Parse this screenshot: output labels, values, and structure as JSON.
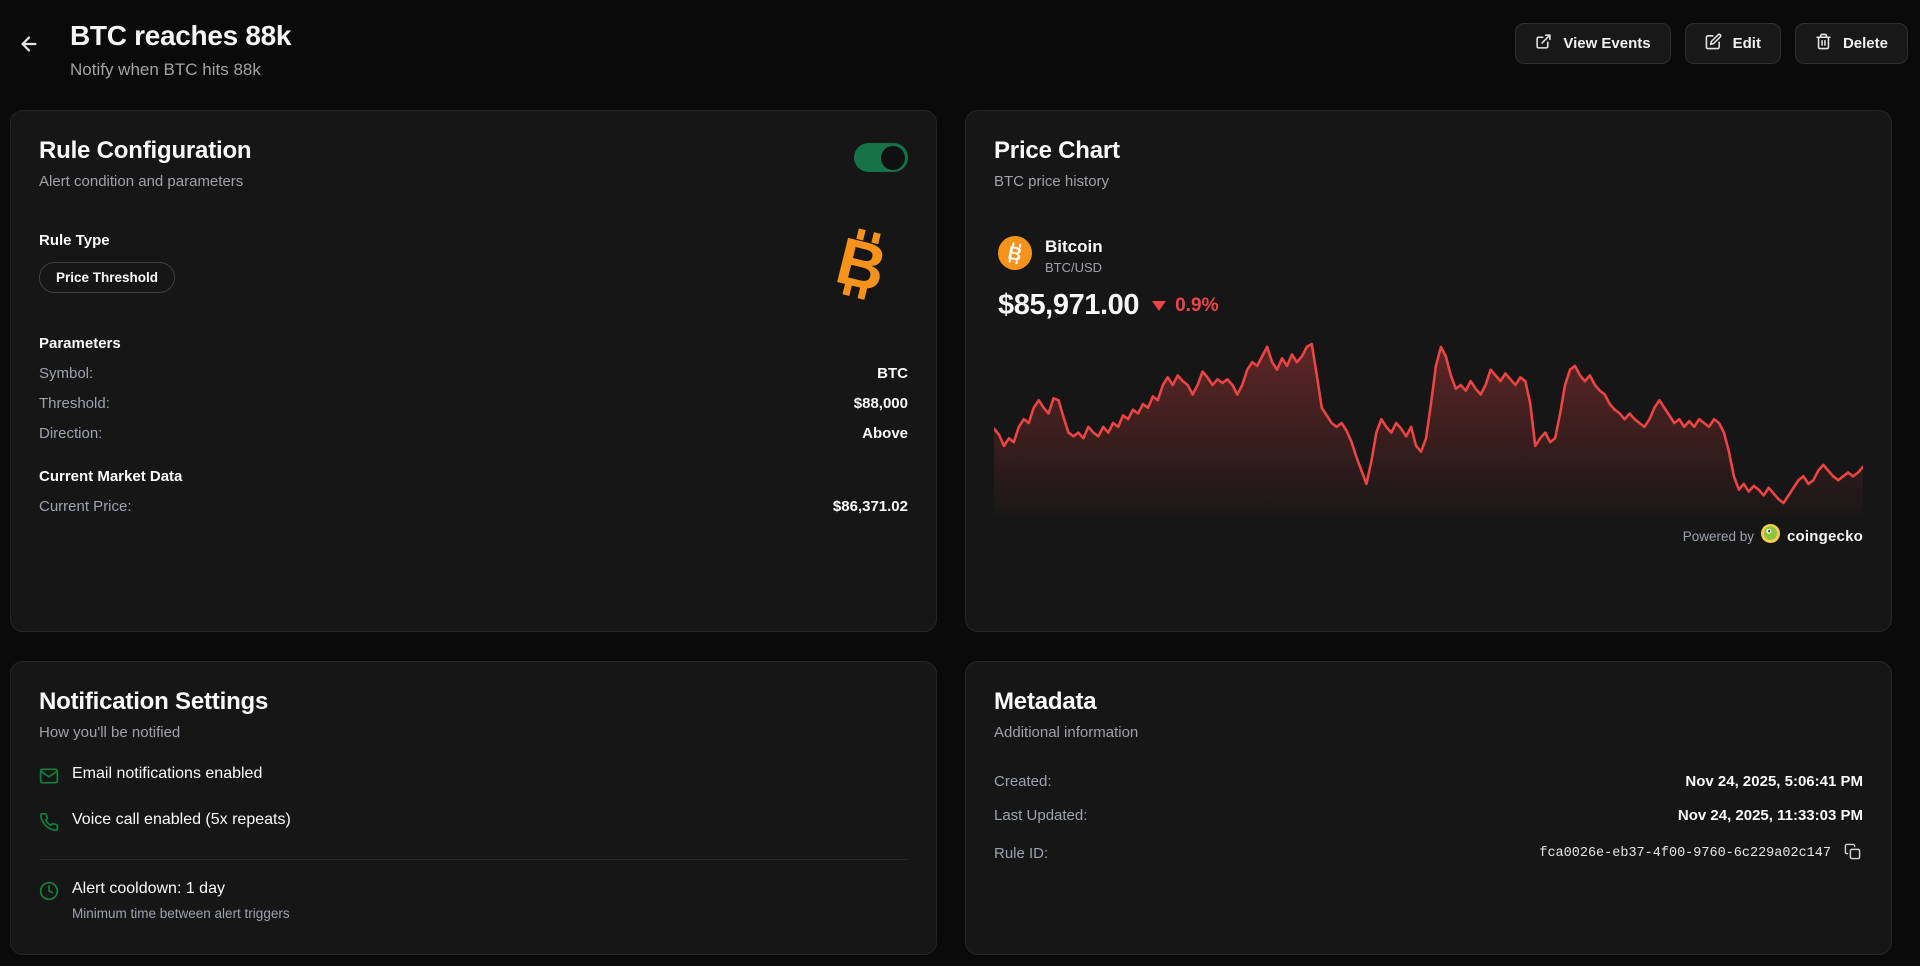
{
  "header": {
    "title": "BTC reaches 88k",
    "subtitle": "Notify when BTC hits 88k",
    "actions": {
      "view_events": "View Events",
      "edit": "Edit",
      "delete": "Delete"
    }
  },
  "rule_config": {
    "title": "Rule Configuration",
    "subtitle": "Alert condition and parameters",
    "enabled": true,
    "rule_type_label": "Rule Type",
    "rule_type_badge": "Price Threshold",
    "parameters_label": "Parameters",
    "params": [
      {
        "label": "Symbol:",
        "value": "BTC"
      },
      {
        "label": "Threshold:",
        "value": "$88,000"
      },
      {
        "label": "Direction:",
        "value": "Above"
      }
    ],
    "market_label": "Current Market Data",
    "market": [
      {
        "label": "Current Price:",
        "value": "$86,371.02"
      }
    ]
  },
  "price_chart": {
    "title": "Price Chart",
    "subtitle": "BTC price history",
    "coin_name": "Bitcoin",
    "pair": "BTC/USD",
    "price": "$85,971.00",
    "change": "0.9%",
    "change_direction": "down",
    "powered_by": "Powered by",
    "provider": "coingecko"
  },
  "chart_data": {
    "type": "line",
    "title": "BTC price history",
    "xlabel": "",
    "ylabel": "",
    "axes_visible": false,
    "grid": false,
    "legend": "none",
    "line_color": "#ef4444",
    "fill": "red gradient fading to transparent",
    "ylim": [
      85100,
      88700
    ],
    "series": [
      {
        "name": "BTC/USD",
        "values": [
          86786,
          86663,
          86419,
          86582,
          86500,
          86826,
          86990,
          86908,
          87234,
          87397,
          87234,
          87112,
          87438,
          87397,
          87030,
          86704,
          86623,
          86704,
          86582,
          86826,
          86704,
          86623,
          86826,
          86704,
          86908,
          86826,
          87071,
          86990,
          87193,
          87112,
          87316,
          87234,
          87479,
          87397,
          87723,
          87886,
          87723,
          87927,
          87805,
          87723,
          87519,
          87723,
          88009,
          87886,
          87723,
          87845,
          87764,
          87845,
          87723,
          87519,
          87723,
          88049,
          88212,
          88131,
          88335,
          88538,
          88212,
          88049,
          88294,
          88131,
          88375,
          88212,
          88335,
          88538,
          88600,
          87927,
          87234,
          87071,
          86908,
          86826,
          86908,
          86745,
          86500,
          86174,
          85889,
          85604,
          86093,
          86704,
          86990,
          86826,
          86704,
          86908,
          86786,
          86623,
          86826,
          86419,
          86297,
          86582,
          87316,
          88131,
          88538,
          88335,
          87927,
          87642,
          87723,
          87601,
          87805,
          87642,
          87519,
          87723,
          88049,
          87927,
          87805,
          87968,
          87845,
          87723,
          87886,
          87805,
          87316,
          86419,
          86582,
          86704,
          86500,
          86582,
          87112,
          87723,
          88049,
          88131,
          87927,
          87805,
          87927,
          87723,
          87601,
          87519,
          87316,
          87193,
          87112,
          86990,
          87112,
          86990,
          86908,
          86826,
          86990,
          87234,
          87397,
          87234,
          87071,
          86908,
          86990,
          86826,
          86949,
          86826,
          86990,
          86908,
          86826,
          86990,
          86908,
          86704,
          86297,
          85767,
          85481,
          85604,
          85441,
          85563,
          85481,
          85359,
          85522,
          85400,
          85278,
          85196,
          85359,
          85522,
          85685,
          85767,
          85604,
          85685,
          85889,
          86011,
          85889,
          85767,
          85685,
          85767,
          85849,
          85767,
          85849,
          85971
        ]
      }
    ]
  },
  "notifications": {
    "title": "Notification Settings",
    "subtitle": "How you'll be notified",
    "items": [
      {
        "icon": "mail-icon",
        "text": "Email notifications enabled"
      },
      {
        "icon": "phone-icon",
        "text": "Voice call enabled (5x repeats)"
      },
      {
        "icon": "clock-icon",
        "text": "Alert cooldown: 1 day",
        "subtext": "Minimum time between alert triggers"
      }
    ]
  },
  "metadata": {
    "title": "Metadata",
    "subtitle": "Additional information",
    "rows": [
      {
        "label": "Created:",
        "value": "Nov 24, 2025, 5:06:41 PM"
      },
      {
        "label": "Last Updated:",
        "value": "Nov 24, 2025, 11:33:03 PM"
      },
      {
        "label": "Rule ID:",
        "value": "fca0026e-eb37-4f00-9760-6c229a02c147"
      }
    ]
  },
  "colors": {
    "accent_orange": "#f7931a",
    "negative_red": "#ef4444",
    "toggle_green": "#157347",
    "icon_green": "#15803d",
    "card_bg": "#161616",
    "page_bg": "#0a0a0a"
  }
}
